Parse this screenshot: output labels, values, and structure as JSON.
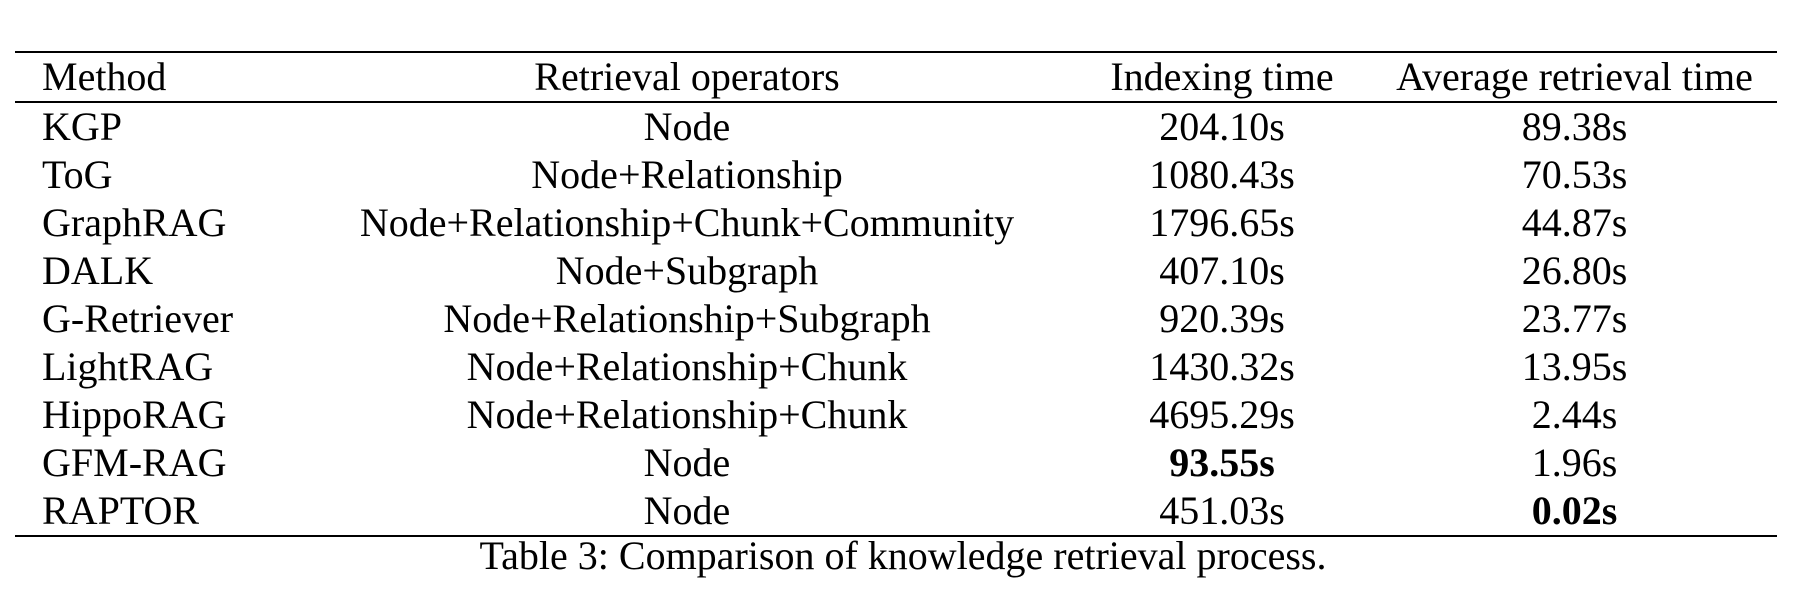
{
  "table": {
    "headers": {
      "method": "Method",
      "operators": "Retrieval operators",
      "indexing": "Indexing time",
      "retrieval": "Average retrieval time"
    },
    "rows": [
      {
        "method": "KGP",
        "operators": "Node",
        "indexing": "204.10s",
        "retrieval": "89.38s"
      },
      {
        "method": "ToG",
        "operators": "Node+Relationship",
        "indexing": "1080.43s",
        "retrieval": "70.53s"
      },
      {
        "method": "GraphRAG",
        "operators": "Node+Relationship+Chunk+Community",
        "indexing": "1796.65s",
        "retrieval": "44.87s"
      },
      {
        "method": "DALK",
        "operators": "Node+Subgraph",
        "indexing": "407.10s",
        "retrieval": "26.80s"
      },
      {
        "method": "G-Retriever",
        "operators": "Node+Relationship+Subgraph",
        "indexing": "920.39s",
        "retrieval": "23.77s"
      },
      {
        "method": "LightRAG",
        "operators": "Node+Relationship+Chunk",
        "indexing": "1430.32s",
        "retrieval": "13.95s"
      },
      {
        "method": "HippoRAG",
        "operators": "Node+Relationship+Chunk",
        "indexing": "4695.29s",
        "retrieval": "2.44s"
      },
      {
        "method": "GFM-RAG",
        "operators": "Node",
        "indexing": "93.55s",
        "retrieval": "1.96s"
      },
      {
        "method": "RAPTOR",
        "operators": "Node",
        "indexing": "451.03s",
        "retrieval": "0.02s"
      }
    ],
    "bold_cells": [
      "rows.7.indexing",
      "rows.8.retrieval"
    ]
  },
  "caption": "Table 3: Comparison of knowledge retrieval process."
}
